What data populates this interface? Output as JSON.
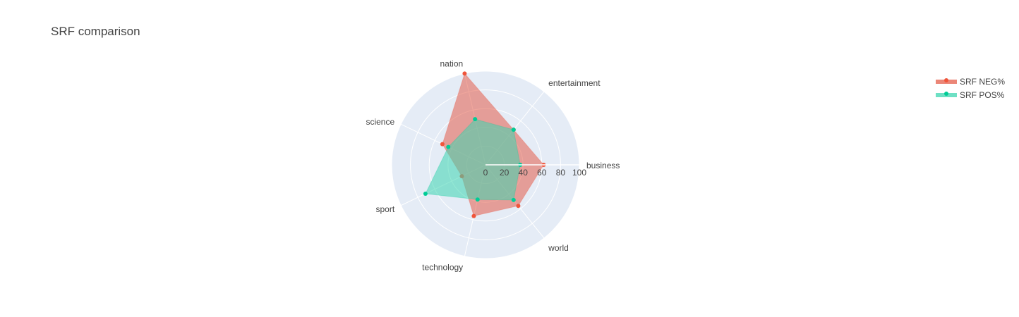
{
  "chart_data": {
    "type": "radar",
    "title": "SRF comparison",
    "categories": [
      "business",
      "entertainment",
      "nation",
      "science",
      "sport",
      "technology",
      "world"
    ],
    "radial_range": [
      0,
      100
    ],
    "radial_ticks": [
      "0",
      "20",
      "40",
      "60",
      "80",
      "100"
    ],
    "legend_position": "top-right",
    "series": [
      {
        "name": "SRF NEG%",
        "values": [
          62,
          48,
          100,
          51,
          28,
          56,
          56
        ],
        "line_color": "#EF553B",
        "fill_color": "#E45D4A"
      },
      {
        "name": "SRF POS%",
        "values": [
          37,
          48,
          50,
          44,
          71,
          38,
          48
        ],
        "line_color": "#00CC96",
        "fill_color": "#3DD5B0"
      }
    ],
    "colors": {
      "polar_bg": "#E5ECF6",
      "grid": "#FFFFFF",
      "text": "#444444"
    }
  }
}
